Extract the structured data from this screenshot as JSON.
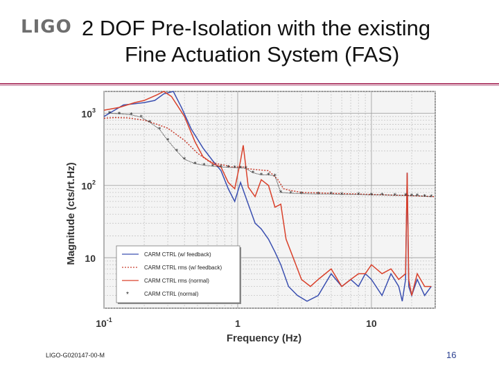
{
  "slide": {
    "logo_text": "LIGO",
    "title_line1": "2 DOF Pre-Isolation with the existing",
    "title_line2": "Fine Actuation System (FAS)",
    "footer_id": "LIGO-G020147-00-M",
    "page_number": "16",
    "accent_color": "#b0406a"
  },
  "chart_data": {
    "type": "line",
    "xlabel": "Frequency (Hz)",
    "ylabel": "Magnitude (cts/rt.Hz)",
    "x_scale": "log",
    "y_scale": "log",
    "xlim": [
      0.1,
      30
    ],
    "ylim": [
      2,
      2000
    ],
    "x_ticks": [
      {
        "value": 0.1,
        "base": "10",
        "exp": "-1"
      },
      {
        "value": 1,
        "base": "1",
        "exp": ""
      },
      {
        "value": 10,
        "base": "10",
        "exp": ""
      }
    ],
    "y_ticks": [
      {
        "value": 10,
        "base": "10",
        "exp": ""
      },
      {
        "value": 100,
        "base": "10",
        "exp": "2"
      },
      {
        "value": 1000,
        "base": "10",
        "exp": "3"
      }
    ],
    "grid": true,
    "legend_position": "bottom-left",
    "series": [
      {
        "name": "CARM CTRL (w/ feedback)",
        "color": "#3a4fb0",
        "style": "solid",
        "x": [
          0.1,
          0.12,
          0.14,
          0.17,
          0.2,
          0.24,
          0.28,
          0.33,
          0.38,
          0.45,
          0.55,
          0.65,
          0.75,
          0.85,
          0.95,
          1.05,
          1.2,
          1.35,
          1.5,
          1.7,
          1.9,
          2.1,
          2.4,
          2.8,
          3.3,
          4,
          5,
          6,
          7,
          8,
          9,
          10,
          12,
          14,
          16,
          17,
          18,
          18.5,
          19,
          20,
          22,
          25,
          28
        ],
        "y": [
          900,
          1100,
          1300,
          1350,
          1400,
          1500,
          1850,
          2000,
          1200,
          600,
          330,
          220,
          160,
          90,
          60,
          110,
          55,
          30,
          25,
          18,
          12,
          8,
          4,
          3,
          2.5,
          3,
          6,
          4,
          5,
          4,
          6,
          5,
          3,
          6,
          4,
          2.5,
          5,
          150,
          4,
          3,
          5,
          3,
          4
        ]
      },
      {
        "name": "CARM CTRL rms (w/ feedback)",
        "color": "#c83a2a",
        "style": "dotted",
        "x": [
          0.1,
          0.12,
          0.15,
          0.2,
          0.25,
          0.3,
          0.4,
          0.5,
          0.6,
          0.7,
          0.8,
          0.9,
          1,
          1.1,
          1.2,
          1.4,
          1.7,
          2,
          2.2,
          2.5,
          3,
          5,
          10,
          20,
          30
        ],
        "y": [
          850,
          870,
          860,
          800,
          700,
          620,
          420,
          280,
          220,
          200,
          190,
          180,
          180,
          180,
          170,
          165,
          160,
          120,
          90,
          85,
          80,
          78,
          75,
          72,
          70
        ]
      },
      {
        "name": "CARM CTRL rms (normal)",
        "color": "#d9402a",
        "style": "solid",
        "x": [
          0.1,
          0.13,
          0.17,
          0.2,
          0.25,
          0.28,
          0.32,
          0.4,
          0.48,
          0.55,
          0.65,
          0.75,
          0.85,
          0.95,
          1.05,
          1.1,
          1.2,
          1.35,
          1.5,
          1.7,
          1.9,
          2.1,
          2.3,
          2.6,
          3,
          3.5,
          4,
          5,
          6,
          7,
          8,
          9,
          10,
          12,
          14,
          16,
          18,
          18.5,
          19,
          20,
          22,
          25,
          28
        ],
        "y": [
          1100,
          1200,
          1400,
          1500,
          1800,
          2000,
          1700,
          900,
          400,
          250,
          200,
          180,
          110,
          90,
          220,
          360,
          95,
          70,
          120,
          100,
          50,
          55,
          18,
          10,
          5,
          4,
          5,
          7,
          4,
          5,
          6,
          6,
          8,
          6,
          7,
          5,
          6,
          150,
          5,
          3,
          6,
          4,
          4
        ]
      },
      {
        "name": "CARM CTRL (normal)",
        "color": "#222222",
        "style": "star",
        "x": [
          0.11,
          0.13,
          0.16,
          0.19,
          0.22,
          0.26,
          0.3,
          0.35,
          0.4,
          0.48,
          0.56,
          0.65,
          0.75,
          0.85,
          0.95,
          1.05,
          1.15,
          1.3,
          1.5,
          1.7,
          1.9,
          2.1,
          2.5,
          3,
          4,
          5,
          6,
          8,
          10,
          12,
          15,
          18,
          20,
          22,
          25,
          28
        ],
        "y": [
          1000,
          980,
          950,
          880,
          750,
          600,
          420,
          300,
          230,
          200,
          190,
          185,
          180,
          178,
          176,
          175,
          172,
          150,
          140,
          140,
          135,
          80,
          78,
          77,
          76,
          76,
          75,
          75,
          74,
          74,
          73,
          73,
          72,
          72,
          71,
          70
        ]
      }
    ]
  }
}
